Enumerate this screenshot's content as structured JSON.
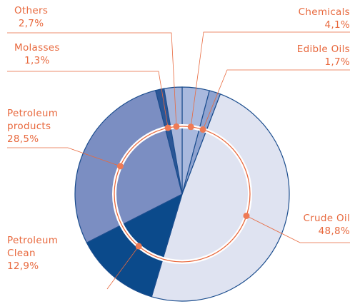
{
  "chart_data": {
    "type": "pie",
    "categories": [
      "Chemicals",
      "Edible Oils",
      "Crude Oil",
      "Petroleum Clean",
      "Petroleum products",
      "Molasses",
      "Others"
    ],
    "values": [
      4.1,
      1.7,
      48.8,
      12.9,
      28.5,
      1.3,
      2.7
    ],
    "value_labels": [
      "4,1%",
      "1,7%",
      "48,8%",
      "12,9%",
      "28,5%",
      "1,3%",
      "2,7%"
    ],
    "colors": [
      "#a9b9de",
      "#8fa3d0",
      "#dfe3f1",
      "#0b4a8b",
      "#7b8ec2",
      "#2b5696",
      "#a7b5da"
    ]
  }
}
